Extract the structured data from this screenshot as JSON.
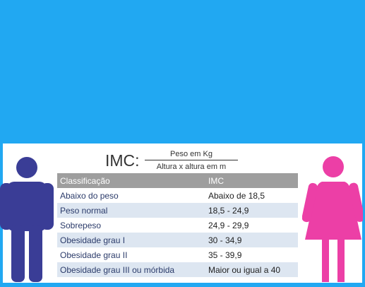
{
  "formula": {
    "label": "IMC:",
    "numerator": "Peso em Kg",
    "denominator": "Altura x altura em m"
  },
  "table": {
    "headers": [
      "Classificação",
      "IMC"
    ],
    "rows": [
      [
        "Abaixo do peso",
        "Abaixo de 18,5"
      ],
      [
        "Peso normal",
        "18,5 - 24,9"
      ],
      [
        "Sobrepeso",
        "24,9 - 29,9"
      ],
      [
        "Obesidade grau I",
        "30 - 34,9"
      ],
      [
        "Obesidade grau II",
        "35 - 39,9"
      ],
      [
        "Obesidade grau III ou mórbida",
        "Maior ou igual a 40"
      ]
    ]
  },
  "icons": {
    "left": "male-figure-icon",
    "right": "female-figure-icon"
  },
  "colors": {
    "background": "#21a8f2",
    "male": "#3a3d96",
    "female": "#ec3fa6",
    "header": "#9e9e9e",
    "row_alt": "#dde6f1"
  }
}
